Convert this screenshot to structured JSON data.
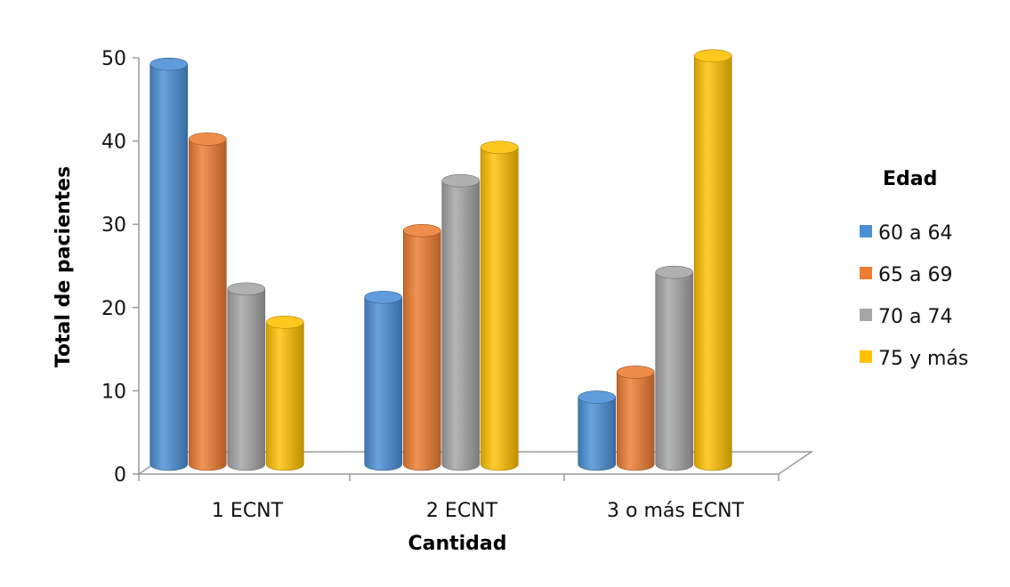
{
  "chart_data": {
    "type": "bar",
    "xlabel": "Cantidad",
    "ylabel": "Total de pacientes",
    "categories": [
      "1 ECNT",
      "2 ECNT",
      "3 o más ECNT"
    ],
    "ylim": [
      0,
      50
    ],
    "yticks": [
      "0",
      "10",
      "20",
      "30",
      "40",
      "50"
    ],
    "legend": {
      "title": "Edad",
      "placement": "right"
    },
    "series": [
      {
        "name": "60 a 64",
        "color": "#4a8fd6",
        "values": [
          49,
          21,
          9
        ]
      },
      {
        "name": "65 a 69",
        "color": "#ed7d31",
        "values": [
          40,
          29,
          12
        ]
      },
      {
        "name": "70 a 74",
        "color": "#a5a5a5",
        "values": [
          22,
          35,
          24
        ]
      },
      {
        "name": "75 y más",
        "color": "#ffc000",
        "values": [
          18,
          39,
          50
        ]
      }
    ],
    "grid": false,
    "style": "3d-cylinder"
  }
}
